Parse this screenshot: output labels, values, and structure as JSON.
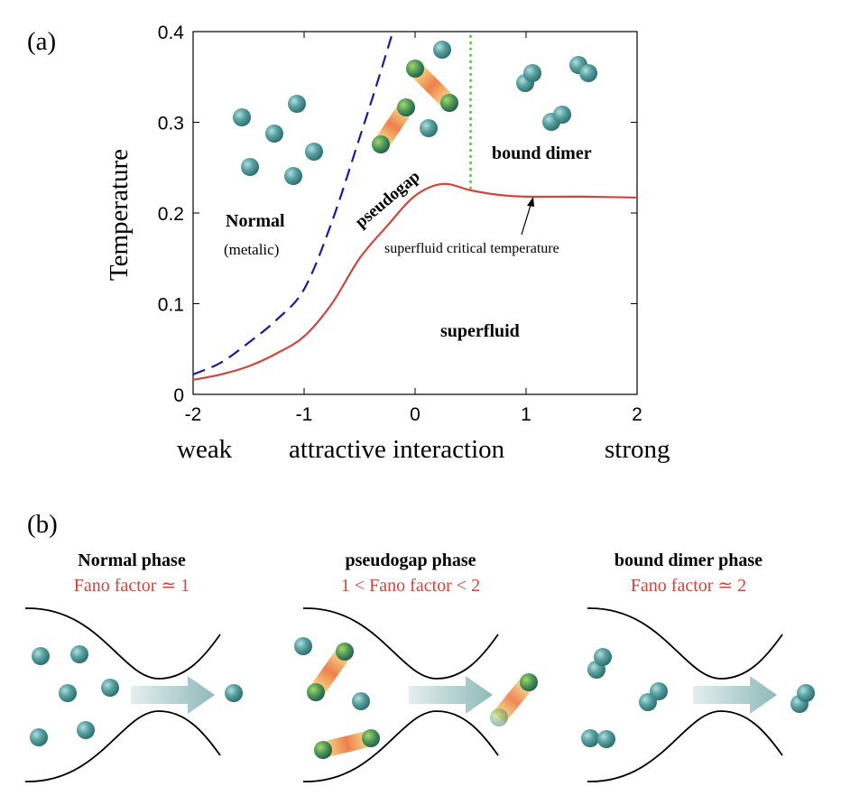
{
  "panel_a": {
    "label": "(a)",
    "region_labels": {
      "normal": "Normal",
      "normal_sub": "(metalic)",
      "pseudogap": "pseudogap",
      "bound_dimer": "bound dimer",
      "superfluid": "superfluid",
      "tc_annotation": "superfluid critical temperature"
    },
    "x_extra_labels": {
      "weak": "weak",
      "strong": "strong"
    }
  },
  "panel_b": {
    "label": "(b)",
    "phases": [
      {
        "title": "Normal phase",
        "fano": "Fano factor ≃ 1"
      },
      {
        "title": "pseudogap phase",
        "fano": "1 < Fano factor < 2"
      },
      {
        "title": "bound dimer phase",
        "fano": "Fano factor ≃ 2"
      }
    ]
  },
  "colors": {
    "tc_line": "#d0463c",
    "pseudogap_line": "#1a1aa0",
    "dimer_line": "#5cbf4a",
    "fano_text": "#d0463c",
    "particle": "#4e9a9a",
    "arrow": "#9ec3c3"
  },
  "chart_data": {
    "type": "line",
    "title": "",
    "xlabel": "attractive interaction",
    "ylabel": "Temperature",
    "xlim": [
      -2,
      2
    ],
    "ylim": [
      0,
      0.4
    ],
    "x_ticks": [
      "-2",
      "-1",
      "0",
      "1",
      "2"
    ],
    "y_ticks": [
      "0",
      "0.1",
      "0.2",
      "0.3",
      "0.4"
    ],
    "grid": false,
    "series": [
      {
        "name": "superfluid critical temperature",
        "style": "solid",
        "color": "#d0463c",
        "x": [
          -2,
          -1.75,
          -1.5,
          -1.25,
          -1,
          -0.75,
          -0.5,
          -0.25,
          0,
          0.25,
          0.5,
          0.75,
          1,
          1.5,
          2
        ],
        "y": [
          0.016,
          0.022,
          0.031,
          0.045,
          0.064,
          0.1,
          0.15,
          0.186,
          0.219,
          0.232,
          0.225,
          0.22,
          0.218,
          0.218,
          0.217
        ]
      },
      {
        "name": "pseudogap crossover",
        "style": "dashed",
        "color": "#1a1aa0",
        "x": [
          -2,
          -1.75,
          -1.5,
          -1.25,
          -1,
          -0.75,
          -0.5,
          -0.35,
          -0.2
        ],
        "y": [
          0.022,
          0.035,
          0.057,
          0.082,
          0.116,
          0.19,
          0.283,
          0.34,
          0.4
        ]
      },
      {
        "name": "bound dimer boundary",
        "style": "dotted",
        "color": "#5cbf4a",
        "x": [
          0.5,
          0.5
        ],
        "y": [
          0.226,
          0.4
        ]
      }
    ]
  }
}
